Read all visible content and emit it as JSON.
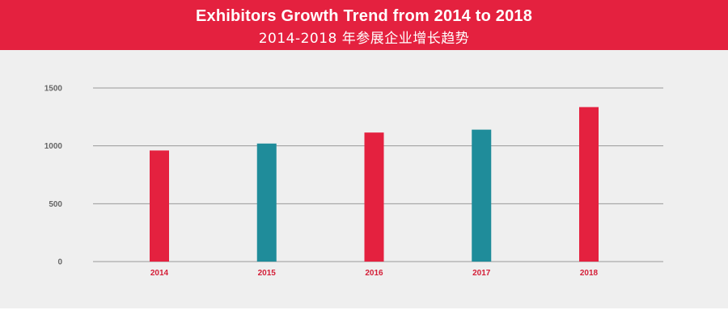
{
  "header": {
    "title": "Exhibitors Growth Trend from 2014 to 2018",
    "subtitle": "2014-2018 年参展企业增长趋势"
  },
  "colors": {
    "header_bg": "#e4213f",
    "bar_red": "#e4213f",
    "bar_teal": "#1f8c9a",
    "plot_bg": "#efefef",
    "grid": "#9a9a9a",
    "x_tick_text": "#d41e37",
    "y_tick_text": "#666666"
  },
  "chart_data": {
    "type": "bar",
    "title": "Exhibitors Growth Trend from 2014 to 2018",
    "subtitle": "2014-2018 年参展企业增长趋势",
    "categories": [
      "2014",
      "2015",
      "2016",
      "2017",
      "2018"
    ],
    "values": [
      960,
      1020,
      1115,
      1140,
      1335
    ],
    "bar_colors": [
      "#e4213f",
      "#1f8c9a",
      "#e4213f",
      "#1f8c9a",
      "#e4213f"
    ],
    "ylim": [
      0,
      1500
    ],
    "yticks": [
      0,
      500,
      1000,
      1500
    ],
    "xlabel": "",
    "ylabel": "",
    "grid": true,
    "legend": "none"
  }
}
